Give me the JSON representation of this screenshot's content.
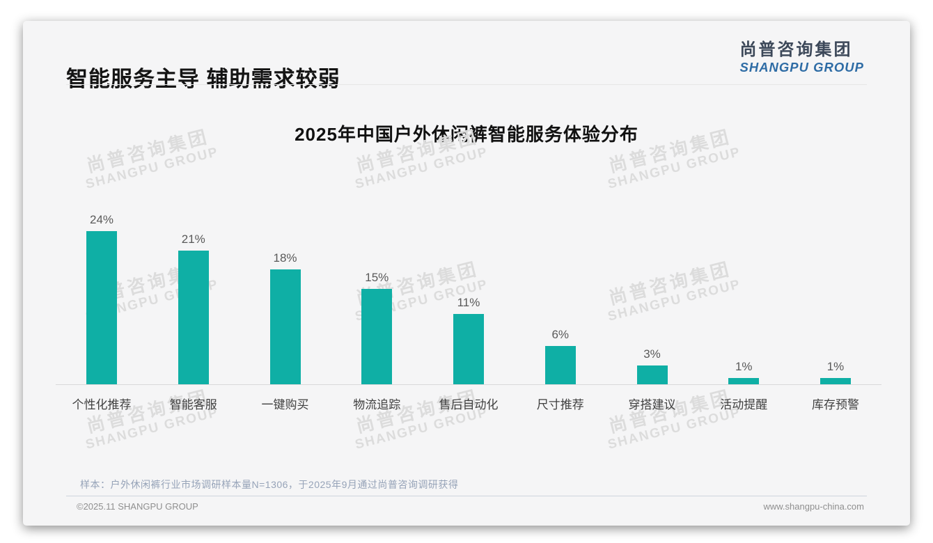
{
  "header": {
    "title": "智能服务主导 辅助需求较弱",
    "logo_cn": "尚普咨询集团",
    "logo_en": "SHANGPU GROUP"
  },
  "chart_data": {
    "type": "bar",
    "title": "2025年中国户外休闲裤智能服务体验分布",
    "categories": [
      "个性化推荐",
      "智能客服",
      "一键购买",
      "物流追踪",
      "售后自动化",
      "尺寸推荐",
      "穿搭建议",
      "活动提醒",
      "库存预警"
    ],
    "values": [
      24,
      21,
      18,
      15,
      11,
      6,
      3,
      1,
      1
    ],
    "unit": "%",
    "xlabel": "",
    "ylabel": "",
    "ylim": [
      0,
      26
    ],
    "grid": false,
    "legend": false,
    "value_label_position": "above-bar",
    "bar_color": "#0fafa5"
  },
  "watermark": {
    "line1": "尚普咨询集团",
    "line2": "SHANGPU GROUP"
  },
  "note": "样本：户外休闲裤行业市场调研样本量N=1306，于2025年9月通过尚普咨询调研获得",
  "footer": {
    "left": "©2025.11 SHANGPU GROUP",
    "right": "www.shangpu-china.com"
  },
  "colors": {
    "accent_teal": "#0fafa5",
    "logo_dark": "#3c4859",
    "logo_blue": "#2e6ca5",
    "card_bg": "#f5f5f6",
    "watermark_gray": "#dcdcdc"
  }
}
